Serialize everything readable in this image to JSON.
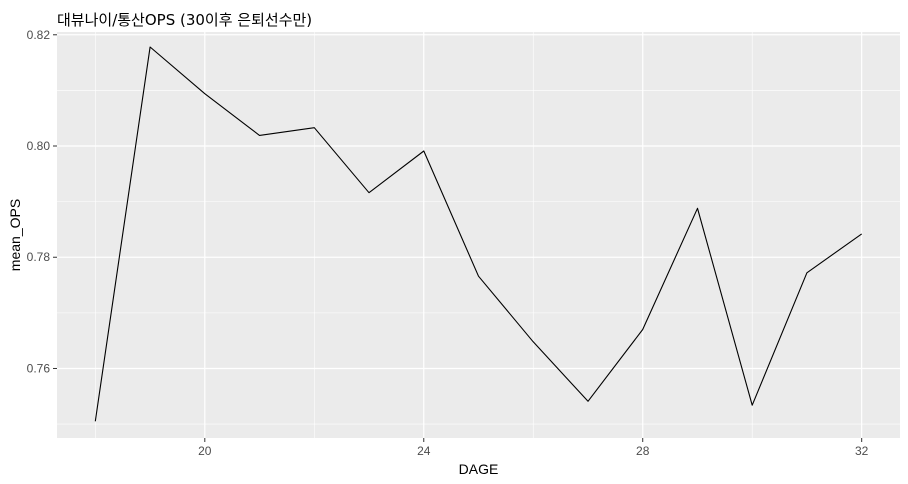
{
  "chart_data": {
    "type": "line",
    "title": "대뷰나이/통산OPS (30이후 은퇴선수만)",
    "xlabel": "DAGE",
    "ylabel": "mean_OPS",
    "x": [
      18,
      19,
      20,
      21,
      22,
      23,
      24,
      25,
      26,
      27,
      28,
      29,
      30,
      31,
      32
    ],
    "y": [
      0.7505,
      0.8178,
      0.8094,
      0.8019,
      0.8033,
      0.7916,
      0.7991,
      0.7766,
      0.7648,
      0.7541,
      0.767,
      0.7888,
      0.7534,
      0.7772,
      0.7842
    ],
    "xlim": [
      17.3,
      32.7
    ],
    "ylim": [
      0.7475,
      0.8205
    ],
    "x_ticks": [
      20,
      24,
      28,
      32
    ],
    "x_tick_labels": [
      "20",
      "24",
      "28",
      "32"
    ],
    "y_ticks": [
      0.76,
      0.78,
      0.8,
      0.82
    ],
    "y_tick_labels": [
      "0.76",
      "0.78",
      "0.80",
      "0.82"
    ],
    "line_color": "#000000",
    "panel_background": "#ebebeb",
    "grid_color": "#ffffff",
    "grid": true,
    "legend": "none"
  }
}
